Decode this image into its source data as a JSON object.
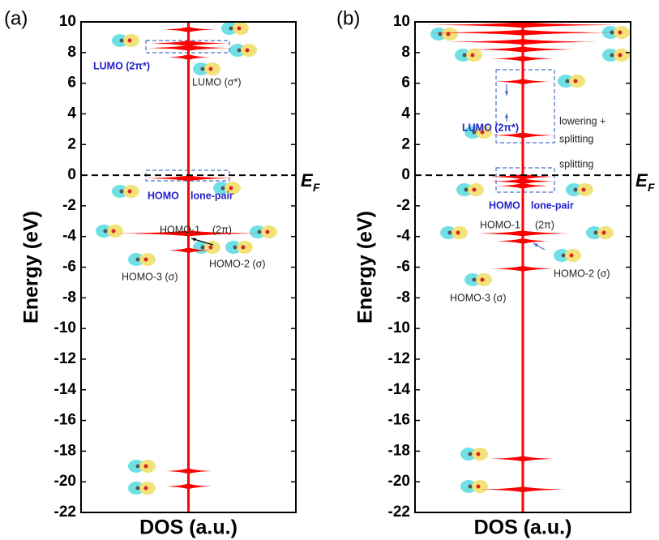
{
  "chart_data": [
    {
      "type": "dos",
      "panel_label": "(a)",
      "y_label": "Energy (eV)",
      "x_label": "DOS (a.u.)",
      "ylim": [
        -22,
        10
      ],
      "yticks": [
        -22,
        -20,
        -18,
        -16,
        -14,
        -12,
        -10,
        -8,
        -6,
        -4,
        -2,
        0,
        2,
        4,
        6,
        8,
        10
      ],
      "color": "#ff0000",
      "fermi_level": 0,
      "fermi_label_main": "E",
      "fermi_label_sub": "F",
      "energies": [
        9.5,
        8.6,
        8.3,
        7.7,
        -0.2,
        -3.8,
        -4.9,
        -19.3,
        -20.3
      ],
      "amplitudes": [
        0.25,
        0.38,
        0.4,
        0.2,
        0.42,
        0.68,
        0.2,
        0.22,
        0.22
      ],
      "annotations": [
        {
          "text": "LUMO (2π*)",
          "color": "#2222cc"
        },
        {
          "text": "LUMO (σ*)",
          "color": "#222222"
        },
        {
          "text": "HOMO",
          "color": "#2222cc"
        },
        {
          "text": "lone-pair",
          "color": "#2222cc"
        },
        {
          "text": "HOMO-1",
          "color": "#222222"
        },
        {
          "text": "(2π)",
          "color": "#222222"
        },
        {
          "text": "HOMO-2 (σ)",
          "color": "#222222"
        },
        {
          "text": "HOMO-3 (σ)",
          "color": "#222222"
        }
      ]
    },
    {
      "type": "dos",
      "panel_label": "(b)",
      "y_label": "Energy (eV)",
      "x_label": "DOS (a.u.)",
      "ylim": [
        -22,
        10
      ],
      "yticks": [
        -22,
        -20,
        -18,
        -16,
        -14,
        -12,
        -10,
        -8,
        -6,
        -4,
        -2,
        0,
        2,
        4,
        6,
        8,
        10
      ],
      "color": "#ff0000",
      "fermi_level": 0,
      "fermi_label_main": "E",
      "fermi_label_sub": "F",
      "energies": [
        9.8,
        9.3,
        8.7,
        8.2,
        7.6,
        6.1,
        2.6,
        -0.1,
        -0.4,
        -0.7,
        -3.8,
        -4.3,
        -6.1,
        -18.5,
        -20.5
      ],
      "amplitudes": [
        0.9,
        0.85,
        0.7,
        0.5,
        0.3,
        0.25,
        0.3,
        0.3,
        0.3,
        0.25,
        0.45,
        0.25,
        0.3,
        0.3,
        0.4
      ],
      "annotations": [
        {
          "text": "LUMO (2π*)",
          "color": "#2222cc"
        },
        {
          "text": "lowering +",
          "color": "#222222"
        },
        {
          "text": "splitting",
          "color": "#222222"
        },
        {
          "text": "splitting",
          "color": "#222222"
        },
        {
          "text": "HOMO",
          "color": "#2222cc"
        },
        {
          "text": "lone-pair",
          "color": "#2222cc"
        },
        {
          "text": "HOMO-1",
          "color": "#222222"
        },
        {
          "text": "(2π)",
          "color": "#222222"
        },
        {
          "text": "HOMO-2 (σ)",
          "color": "#222222"
        },
        {
          "text": "HOMO-3 (σ)",
          "color": "#222222"
        }
      ]
    }
  ]
}
